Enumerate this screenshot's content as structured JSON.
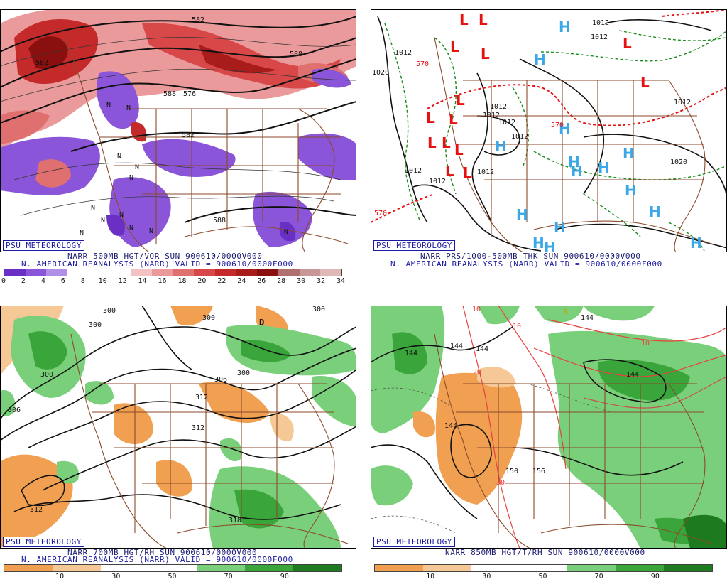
{
  "panels": [
    {
      "badge": "PSU METEOROLOGY",
      "caption1": "NARR 500MB HGT/VOR SUN 900610/0000V000",
      "caption2": "N. AMERICAN REANALYSIS (NARR) VALID = 900610/0000F000",
      "contour_labels": [
        "582",
        "588",
        "576",
        "582",
        "588",
        "588",
        "582"
      ],
      "symbols": [
        "N",
        "N",
        "N",
        "N",
        "N",
        "N",
        "N",
        "N",
        "N",
        "N",
        "N",
        "N"
      ],
      "colorbar": {
        "colors": [
          "#6a2fc4",
          "#8a55d8",
          "#b08fe6",
          "#ffffff",
          "#ffffff",
          "#ffffff",
          "#f3c3c3",
          "#ea9a9a",
          "#e07070",
          "#d84848",
          "#c42a2a",
          "#a81c1c",
          "#8a1010",
          "#b07070",
          "#c89898",
          "#e0b8b8"
        ],
        "ticks": [
          "0",
          "2",
          "4",
          "6",
          "8",
          "10",
          "12",
          "14",
          "16",
          "18",
          "20",
          "22",
          "24",
          "26",
          "28",
          "30",
          "32",
          "34"
        ]
      }
    },
    {
      "badge": "PSU METEOROLOGY",
      "caption1": "NARR PRS/1000-500MB THK SUN 900610/0000V000",
      "caption2": "N. AMERICAN REANALYSIS (NARR) VALID = 900610/0000F000",
      "contour_labels": [
        "1020",
        "1012",
        "570",
        "1012",
        "1012",
        "1012",
        "1012",
        "1012",
        "1012",
        "1012",
        "1012",
        "1012",
        "570",
        "1020",
        "1012",
        "570"
      ],
      "low_symbol": "L",
      "high_symbol": "H",
      "low_color": "#e81010",
      "high_color": "#3aa8e8"
    },
    {
      "badge": "PSU METEOROLOGY",
      "caption1": "NARR 700MB HGT/RH SUN 900610/0000V000",
      "caption2": "N. AMERICAN REANALYSIS (NARR) VALID = 900610/0000F000",
      "contour_labels": [
        "300",
        "300",
        "300",
        "300",
        "306",
        "306",
        "300",
        "312",
        "312",
        "312",
        "318",
        "300",
        "D"
      ],
      "colorbar": {
        "colors": [
          "#f0a050",
          "#f6c896",
          "#ffffff",
          "#ffffff",
          "#7ad07a",
          "#3aa53a",
          "#1e7a1e"
        ],
        "ticks": [
          "10",
          "30",
          "50",
          "70",
          "90"
        ]
      }
    },
    {
      "badge": "PSU METEOROLOGY",
      "caption1": "NARR 850MB HGT/T/RH SUN 900610/0000V000",
      "caption2": "",
      "contour_labels": [
        "144",
        "144",
        "144",
        "144",
        "144",
        "150",
        "156",
        "144",
        "10",
        "10",
        "10",
        "20",
        "30",
        "0"
      ],
      "colorbar": {
        "colors": [
          "#f0a050",
          "#f6c896",
          "#ffffff",
          "#ffffff",
          "#7ad07a",
          "#3aa53a",
          "#1e7a1e"
        ],
        "ticks": [
          "10",
          "30",
          "50",
          "70",
          "90"
        ]
      }
    }
  ]
}
